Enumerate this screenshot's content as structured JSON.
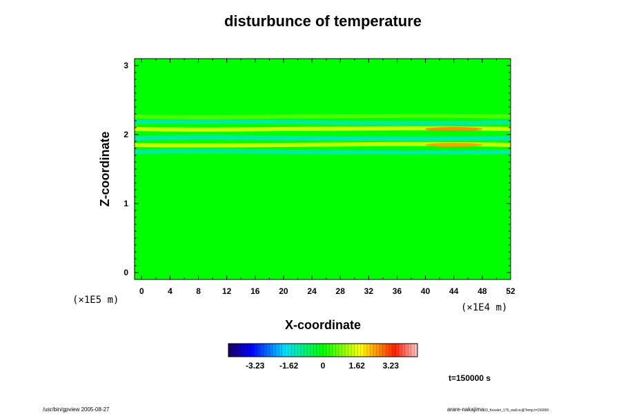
{
  "chart_data": {
    "type": "heatmap",
    "title": "disturbunce of temperature",
    "xlabel": "X-coordinate",
    "ylabel": "Z-coordinate",
    "x_unit": "(×1E4 m)",
    "y_unit": "(×1E5 m)",
    "xlim": [
      -1,
      52
    ],
    "ylim": [
      -0.1,
      3.1
    ],
    "x_ticks": [
      "0",
      "4",
      "8",
      "12",
      "16",
      "20",
      "24",
      "28",
      "32",
      "36",
      "40",
      "44",
      "48",
      "52"
    ],
    "y_ticks": [
      "0",
      "1",
      "2",
      "3"
    ],
    "colorbar": {
      "range": [
        -4.5,
        4.5
      ],
      "tick_labels": [
        "-3.23",
        "-1.62",
        "0",
        "1.62",
        "3.23"
      ],
      "colormap": "rainbow"
    },
    "field_description": "near-zero everywhere (green) except alternating warm/cool horizontal bands between Z=1.75 and Z=2.25; strongest warm anomalies near X=40-48 at Z~1.85 and Z~2.08",
    "bands": [
      {
        "z": 1.75,
        "value": -1.4
      },
      {
        "z": 1.85,
        "value": 1.6
      },
      {
        "z": 1.95,
        "value": -1.5
      },
      {
        "z": 2.08,
        "value": 1.7
      },
      {
        "z": 2.18,
        "value": -1.3
      },
      {
        "z": 2.26,
        "value": 0.6
      }
    ]
  },
  "annotations": {
    "time": "t=150000 s",
    "footer_left": "/usr/bin/gpview 2005-08-27",
    "footer_right": "arare-nakajima",
    "footer_right_small": "03_Kessler_175_wall.nc@Temp,t=150000"
  }
}
